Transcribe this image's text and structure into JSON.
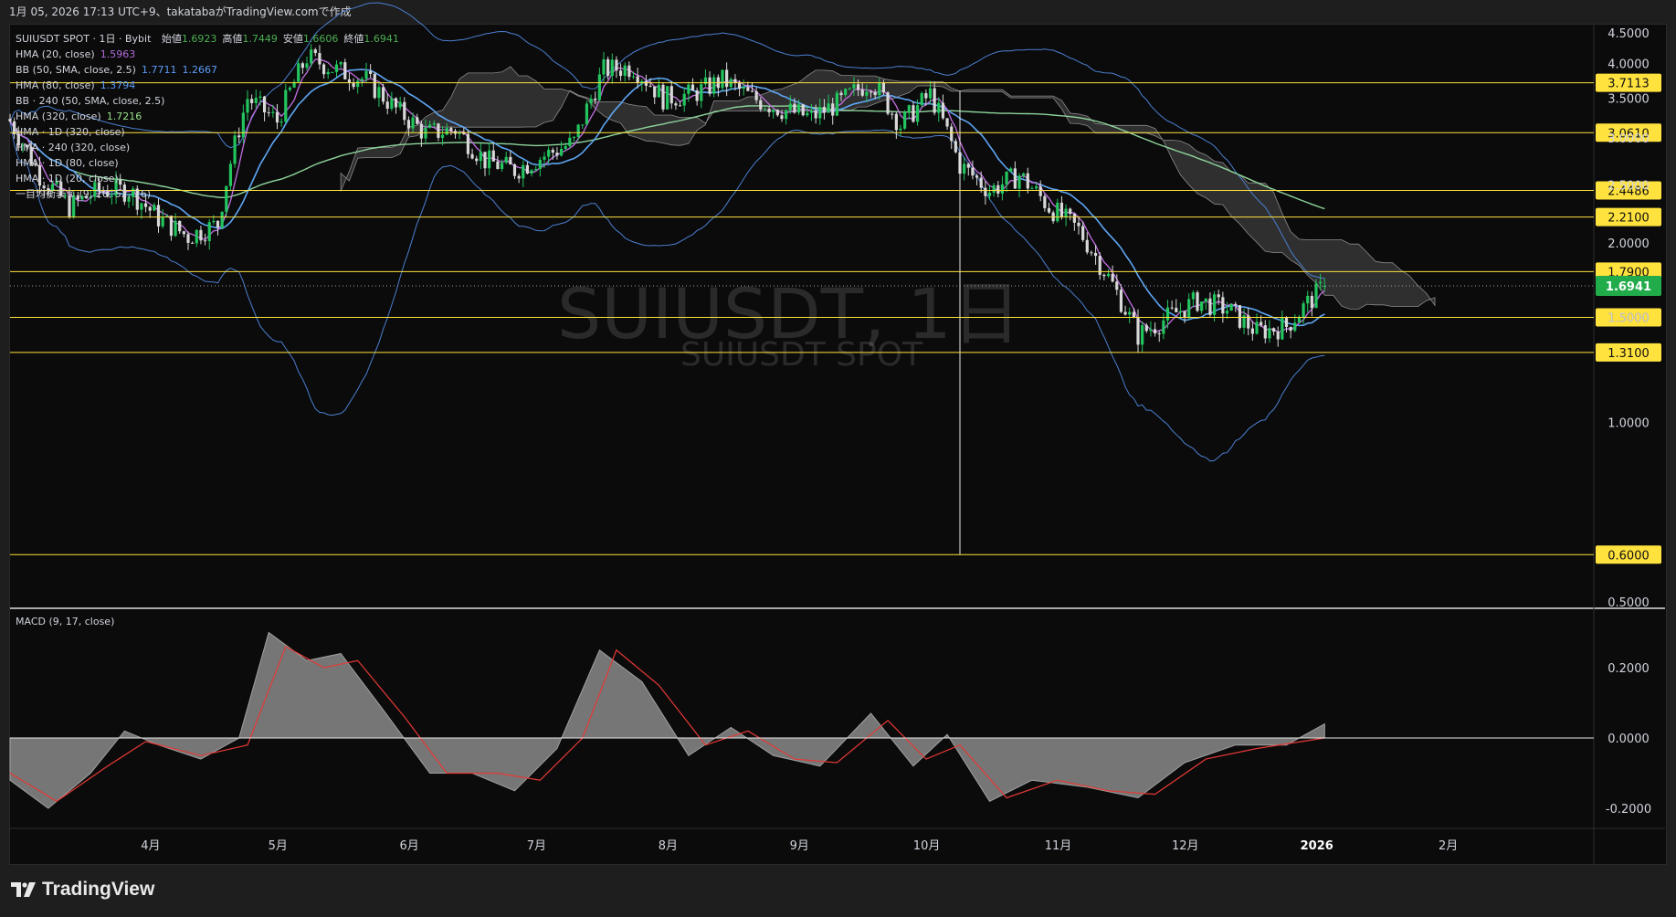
{
  "header": {
    "caption": "1月 05, 2026 17:13 UTC+9、takatabaがTradingView.comで作成"
  },
  "legend": {
    "symbol_line": "SUIUSDT SPOT · 1日 · Bybit",
    "ohlc": [
      {
        "label": "始値",
        "value": "1.6923"
      },
      {
        "label": "高値",
        "value": "1.7449"
      },
      {
        "label": "安値",
        "value": "1.6606"
      },
      {
        "label": "終値",
        "value": "1.6941"
      }
    ],
    "indicators": [
      {
        "label": "HMA (20, close)",
        "values": [
          "1.5963"
        ],
        "colors": [
          "#b36ad8"
        ]
      },
      {
        "label": "BB (50, SMA, close, 2.5)",
        "values": [
          "1.7711",
          "1.2667"
        ],
        "colors": [
          "#5b9cf6",
          "#5b9cf6"
        ]
      },
      {
        "label": "HMA (80, close)",
        "values": [
          "1.3794"
        ],
        "colors": [
          "#5b9cf6"
        ]
      },
      {
        "label": "BB · 240 (50, SMA, close, 2.5)",
        "values": [],
        "colors": []
      },
      {
        "label": "HMA (320, close)",
        "values": [
          "1.7216"
        ],
        "colors": [
          "#9be38a"
        ]
      },
      {
        "label": "HMA · 1D (320, close)",
        "values": [],
        "colors": []
      },
      {
        "label": "HMA · 240 (320, close)",
        "values": [],
        "colors": []
      },
      {
        "label": "HMA · 1D (80, close)",
        "values": [],
        "colors": []
      },
      {
        "label": "HMA · 1D (20, close)",
        "values": [],
        "colors": []
      },
      {
        "label": "一目均衡表® (9, 26, 52, 26)",
        "values": [],
        "colors": []
      }
    ]
  },
  "watermark": {
    "symbol": "SUIUSDT, 1日",
    "sub": "SUIUSDT SPOT"
  },
  "colors": {
    "up": "#22c55e",
    "down": "#d8d8d8",
    "hline": "#ffe23d",
    "last_price_bg": "#22ab4b",
    "hma20": "#c26fe0",
    "hma80": "#5ea6f3",
    "hma320": "#8ed49a",
    "bb": "#4b7fcf",
    "macd_area": "#8a8a8a",
    "signal": "#e53935",
    "cloud": "#3c3c3c"
  },
  "chart_data": [
    {
      "type": "candlestick",
      "title": "SUIUSDT SPOT · 1日 · Bybit",
      "x_tick_labels": [
        "4月",
        "5月",
        "6月",
        "7月",
        "8月",
        "9月",
        "10月",
        "11月",
        "12月",
        "2026",
        "2月"
      ],
      "y_tick_labels": [
        "4.5000",
        "4.0000",
        "3.5000",
        "3.0000",
        "2.5000",
        "2.0000",
        "1.5000",
        "1.0000",
        "0.5000"
      ],
      "y_ticks": [
        4.5,
        4.0,
        3.5,
        3.0,
        2.5,
        2.0,
        1.5,
        1.0,
        0.5
      ],
      "ylim": [
        0.5,
        4.5
      ],
      "y_scale": "log",
      "horizontal_levels": [
        "3.7113",
        "3.0610",
        "2.4486",
        "2.2100",
        "1.7900",
        "1.5000",
        "1.3100",
        "0.6000"
      ],
      "last_price": "1.6941",
      "price_path_weekly": [
        {
          "date": "2025-03-01",
          "close": 3.2
        },
        {
          "date": "2025-03-08",
          "close": 2.6
        },
        {
          "date": "2025-03-15",
          "close": 2.3
        },
        {
          "date": "2025-03-22",
          "close": 2.45
        },
        {
          "date": "2025-03-29",
          "close": 2.45
        },
        {
          "date": "2025-04-05",
          "close": 2.2
        },
        {
          "date": "2025-04-12",
          "close": 2.05
        },
        {
          "date": "2025-04-19",
          "close": 2.15
        },
        {
          "date": "2025-04-26",
          "close": 3.5
        },
        {
          "date": "2025-05-03",
          "close": 3.2
        },
        {
          "date": "2025-05-10",
          "close": 4.1
        },
        {
          "date": "2025-05-17",
          "close": 3.9
        },
        {
          "date": "2025-05-24",
          "close": 3.75
        },
        {
          "date": "2025-05-31",
          "close": 3.35
        },
        {
          "date": "2025-06-07",
          "close": 3.05
        },
        {
          "date": "2025-06-14",
          "close": 3.1
        },
        {
          "date": "2025-06-21",
          "close": 2.75
        },
        {
          "date": "2025-06-28",
          "close": 2.65
        },
        {
          "date": "2025-07-05",
          "close": 2.8
        },
        {
          "date": "2025-07-12",
          "close": 2.95
        },
        {
          "date": "2025-07-19",
          "close": 3.9
        },
        {
          "date": "2025-07-26",
          "close": 3.95
        },
        {
          "date": "2025-08-02",
          "close": 3.5
        },
        {
          "date": "2025-08-09",
          "close": 3.55
        },
        {
          "date": "2025-08-16",
          "close": 3.75
        },
        {
          "date": "2025-08-23",
          "close": 3.5
        },
        {
          "date": "2025-08-30",
          "close": 3.35
        },
        {
          "date": "2025-09-06",
          "close": 3.25
        },
        {
          "date": "2025-09-13",
          "close": 3.45
        },
        {
          "date": "2025-09-20",
          "close": 3.75
        },
        {
          "date": "2025-09-27",
          "close": 3.15
        },
        {
          "date": "2025-10-04",
          "close": 3.55
        },
        {
          "date": "2025-10-11",
          "close": 2.7
        },
        {
          "date": "2025-10-18",
          "close": 2.45
        },
        {
          "date": "2025-10-25",
          "close": 2.6
        },
        {
          "date": "2025-11-01",
          "close": 2.3
        },
        {
          "date": "2025-11-08",
          "close": 2.1
        },
        {
          "date": "2025-11-15",
          "close": 1.75
        },
        {
          "date": "2025-11-22",
          "close": 1.4
        },
        {
          "date": "2025-11-29",
          "close": 1.5
        },
        {
          "date": "2025-12-06",
          "close": 1.6
        },
        {
          "date": "2025-12-13",
          "close": 1.55
        },
        {
          "date": "2025-12-20",
          "close": 1.42
        },
        {
          "date": "2025-12-27",
          "close": 1.45
        },
        {
          "date": "2026-01-05",
          "close": 1.6941
        }
      ]
    },
    {
      "type": "area",
      "title": "MACD (9, 17, close)",
      "y_tick_labels": [
        "0.2000",
        "0.0000",
        "-0.2000"
      ],
      "y_ticks": [
        0.2,
        0.0,
        -0.2
      ],
      "ylim": [
        -0.27,
        0.32
      ],
      "series": [
        {
          "name": "MACD",
          "values": [
            {
              "date": "2025-03-01",
              "v": -0.12
            },
            {
              "date": "2025-03-10",
              "v": -0.2
            },
            {
              "date": "2025-03-20",
              "v": -0.1
            },
            {
              "date": "2025-03-28",
              "v": 0.02
            },
            {
              "date": "2025-04-05",
              "v": -0.02
            },
            {
              "date": "2025-04-15",
              "v": -0.06
            },
            {
              "date": "2025-04-24",
              "v": 0.0
            },
            {
              "date": "2025-05-01",
              "v": 0.3
            },
            {
              "date": "2025-05-10",
              "v": 0.22
            },
            {
              "date": "2025-05-18",
              "v": 0.24
            },
            {
              "date": "2025-05-28",
              "v": 0.08
            },
            {
              "date": "2025-06-08",
              "v": -0.1
            },
            {
              "date": "2025-06-18",
              "v": -0.1
            },
            {
              "date": "2025-06-28",
              "v": -0.15
            },
            {
              "date": "2025-07-08",
              "v": -0.03
            },
            {
              "date": "2025-07-18",
              "v": 0.25
            },
            {
              "date": "2025-07-28",
              "v": 0.16
            },
            {
              "date": "2025-08-08",
              "v": -0.05
            },
            {
              "date": "2025-08-18",
              "v": 0.03
            },
            {
              "date": "2025-08-28",
              "v": -0.05
            },
            {
              "date": "2025-09-08",
              "v": -0.08
            },
            {
              "date": "2025-09-20",
              "v": 0.07
            },
            {
              "date": "2025-09-30",
              "v": -0.08
            },
            {
              "date": "2025-10-08",
              "v": 0.01
            },
            {
              "date": "2025-10-18",
              "v": -0.18
            },
            {
              "date": "2025-10-28",
              "v": -0.12
            },
            {
              "date": "2025-11-10",
              "v": -0.14
            },
            {
              "date": "2025-11-22",
              "v": -0.17
            },
            {
              "date": "2025-12-03",
              "v": -0.07
            },
            {
              "date": "2025-12-15",
              "v": -0.02
            },
            {
              "date": "2025-12-27",
              "v": -0.02
            },
            {
              "date": "2026-01-05",
              "v": 0.04
            }
          ]
        },
        {
          "name": "Signal",
          "values": [
            {
              "date": "2025-03-01",
              "v": -0.1
            },
            {
              "date": "2025-03-12",
              "v": -0.18
            },
            {
              "date": "2025-03-24",
              "v": -0.08
            },
            {
              "date": "2025-04-02",
              "v": -0.01
            },
            {
              "date": "2025-04-15",
              "v": -0.05
            },
            {
              "date": "2025-04-26",
              "v": -0.02
            },
            {
              "date": "2025-05-05",
              "v": 0.26
            },
            {
              "date": "2025-05-14",
              "v": 0.2
            },
            {
              "date": "2025-05-22",
              "v": 0.22
            },
            {
              "date": "2025-06-02",
              "v": 0.06
            },
            {
              "date": "2025-06-12",
              "v": -0.1
            },
            {
              "date": "2025-06-24",
              "v": -0.1
            },
            {
              "date": "2025-07-04",
              "v": -0.12
            },
            {
              "date": "2025-07-14",
              "v": 0.0
            },
            {
              "date": "2025-07-22",
              "v": 0.25
            },
            {
              "date": "2025-08-01",
              "v": 0.15
            },
            {
              "date": "2025-08-12",
              "v": -0.02
            },
            {
              "date": "2025-08-22",
              "v": 0.02
            },
            {
              "date": "2025-09-02",
              "v": -0.06
            },
            {
              "date": "2025-09-12",
              "v": -0.07
            },
            {
              "date": "2025-09-24",
              "v": 0.05
            },
            {
              "date": "2025-10-03",
              "v": -0.06
            },
            {
              "date": "2025-10-11",
              "v": -0.02
            },
            {
              "date": "2025-10-22",
              "v": -0.17
            },
            {
              "date": "2025-11-03",
              "v": -0.12
            },
            {
              "date": "2025-11-15",
              "v": -0.15
            },
            {
              "date": "2025-11-26",
              "v": -0.16
            },
            {
              "date": "2025-12-08",
              "v": -0.06
            },
            {
              "date": "2025-12-20",
              "v": -0.03
            },
            {
              "date": "2026-01-05",
              "v": 0.0
            }
          ]
        }
      ]
    }
  ]
}
